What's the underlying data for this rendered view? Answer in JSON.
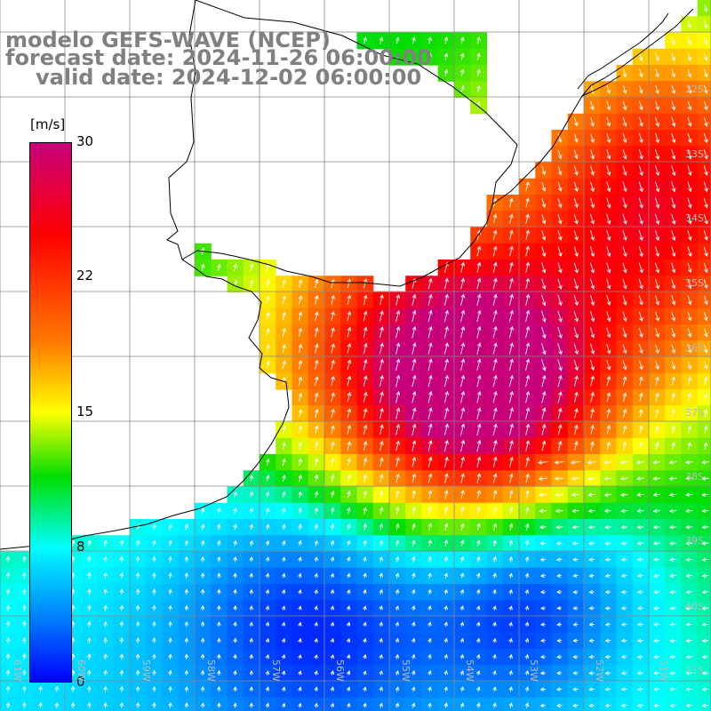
{
  "title": {
    "line1": "modelo GEFS-WAVE (NCEP)",
    "line2": "forecast date: 2024-11-26 06:00:00",
    "line3": "valid date: 2024-12-02 06:00:00"
  },
  "colorbar": {
    "unit": "[m/s]",
    "labels": [
      "30",
      "22",
      "15",
      "8",
      "0"
    ],
    "colors": [
      "#c8007a",
      "#ff0000",
      "#ff7a00",
      "#ffff00",
      "#00dd00",
      "#00ffff",
      "#0080ff",
      "#0000ff"
    ]
  },
  "latitude_labels": [
    "32S",
    "33S",
    "34S",
    "35S",
    "36S",
    "37S",
    "38S",
    "39S",
    "40S",
    "41S"
  ],
  "longitude_labels": [
    "61W",
    "60W",
    "59W",
    "58W",
    "57W",
    "56W",
    "55W",
    "54W",
    "53W",
    "52W",
    "51W"
  ]
}
